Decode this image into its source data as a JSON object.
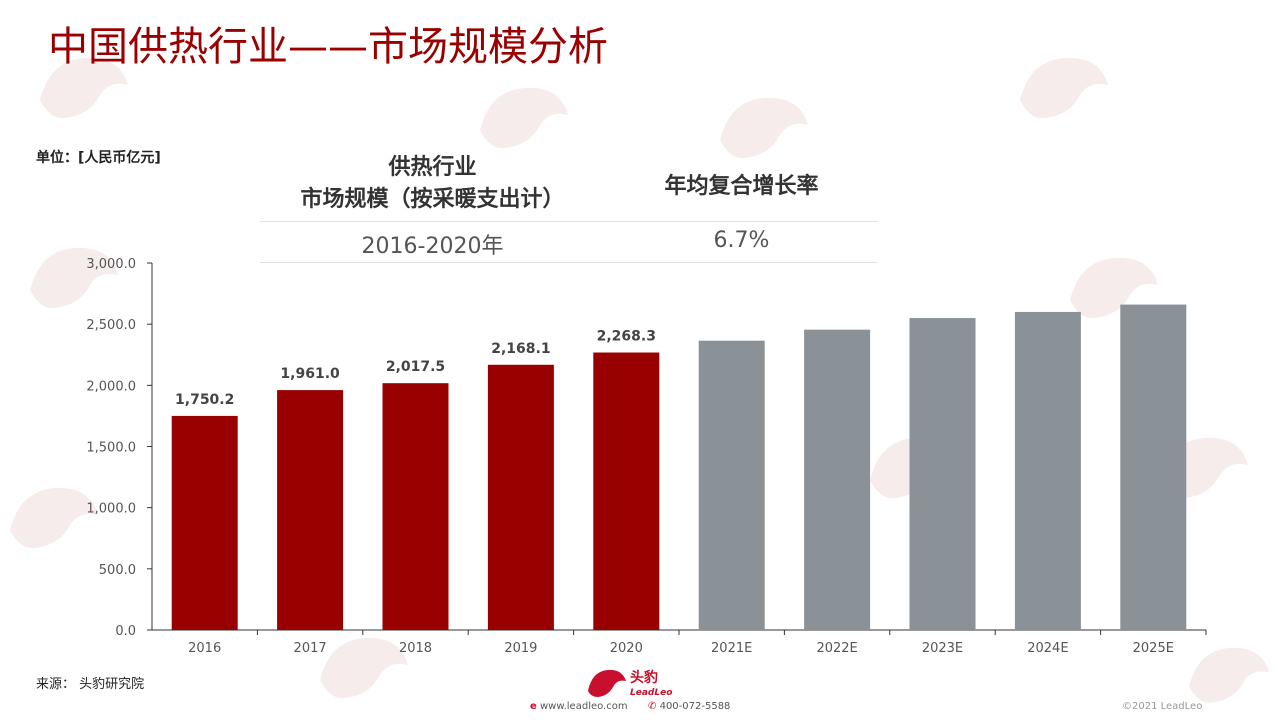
{
  "page": {
    "title": "中国供热行业——市场规模分析",
    "unit_label": "单位：[人民币亿元]",
    "source": "来源：  头豹研究院"
  },
  "summary_table": {
    "market_header_line1": "供热行业",
    "market_header_line2": "市场规模（按采暖支出计）",
    "cagr_header": "年均复合增长率",
    "period": "2016-2020年",
    "cagr": "6.7%"
  },
  "footer": {
    "brand_cn": "头豹",
    "brand_en": "LeadLeo",
    "website": "www.leadleo.com",
    "phone": "400-072-5588",
    "copyright": "©2021 LeadLeo"
  },
  "colors": {
    "title": "#9b0000",
    "actual_bar": "#990000",
    "estimate_bar": "#8a9297"
  },
  "chart_data": {
    "type": "bar",
    "categories": [
      "2016",
      "2017",
      "2018",
      "2019",
      "2020",
      "2021E",
      "2022E",
      "2023E",
      "2024E",
      "2025E"
    ],
    "values": [
      1750.2,
      1961.0,
      2017.5,
      2168.1,
      2268.3,
      2365,
      2455,
      2550,
      2600,
      2660
    ],
    "data_labels": [
      "1,750.2",
      "1,961.0",
      "2,017.5",
      "2,168.1",
      "2,268.3",
      "",
      "",
      "",
      "",
      ""
    ],
    "estimate_flags": [
      false,
      false,
      false,
      false,
      false,
      true,
      true,
      true,
      true,
      true
    ],
    "y_ticks": [
      "0.0",
      "500.0",
      "1,000.0",
      "1,500.0",
      "2,000.0",
      "2,500.0",
      "3,000.0"
    ],
    "ylim": [
      0,
      3000
    ],
    "xlabel": "",
    "ylabel": "",
    "grid": false,
    "legend": "none"
  }
}
